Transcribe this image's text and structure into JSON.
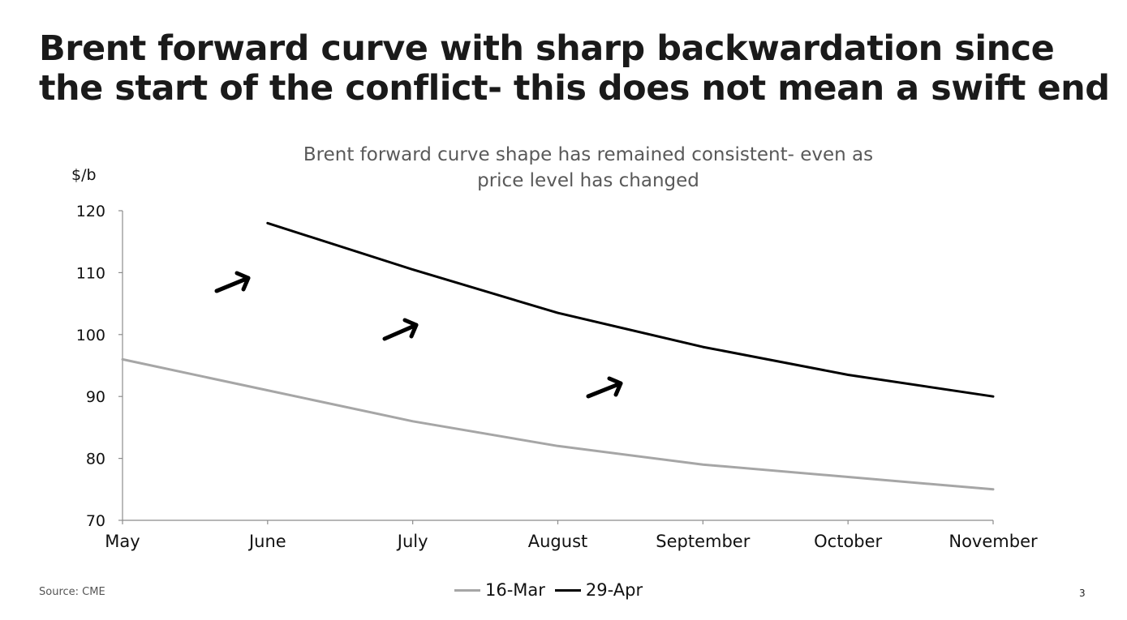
{
  "slide": {
    "title": "Brent forward curve with sharp backwardation since the start of the conflict- this does not mean a swift end",
    "source": "Source: CME",
    "page_number": "3"
  },
  "chart_data": {
    "type": "line",
    "title": "Brent forward curve shape has remained consistent- even as price level has changed",
    "ylabel": "$/b",
    "xlabel": "",
    "categories": [
      "May",
      "June",
      "July",
      "August",
      "September",
      "October",
      "November"
    ],
    "ylim": [
      70,
      120
    ],
    "yticks": [
      70,
      80,
      90,
      100,
      110,
      120
    ],
    "grid": false,
    "legend_position": "bottom-center",
    "series": [
      {
        "name": "16-Mar",
        "color": "#a6a6a6",
        "values": [
          96,
          91,
          86,
          82,
          79,
          77,
          75
        ]
      },
      {
        "name": "29-Apr",
        "color": "#000000",
        "values": [
          null,
          118,
          110.5,
          103.5,
          98,
          93.5,
          90
        ]
      }
    ],
    "annotations": [
      {
        "type": "arrow",
        "direction": "up-right",
        "near": "June"
      },
      {
        "type": "arrow",
        "direction": "up-right",
        "near": "July"
      },
      {
        "type": "arrow",
        "direction": "up-right",
        "near": "August"
      }
    ]
  }
}
